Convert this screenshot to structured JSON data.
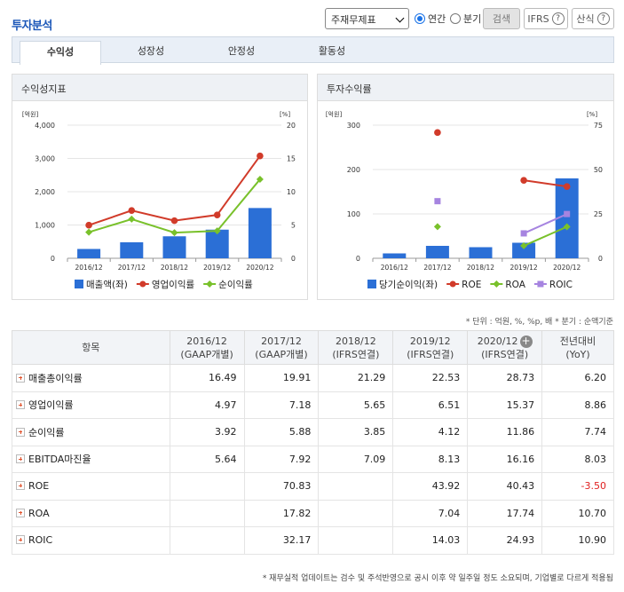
{
  "header": {
    "title": "투자분석",
    "select_value": "주재무제표",
    "radio_annual": "연간",
    "radio_quarter": "분기",
    "search": "검색",
    "ifrs": "IFRS",
    "calc": "산식",
    "q": "?"
  },
  "tabs": [
    "수익성",
    "성장성",
    "안정성",
    "활동성"
  ],
  "left_panel": {
    "title": "수익성지표",
    "unit_left": "[억원]",
    "unit_right": "[%]",
    "legend": [
      "매출액(좌)",
      "영업이익률",
      "순이익률"
    ]
  },
  "right_panel": {
    "title": "투자수익률",
    "unit_left": "[억원]",
    "unit_right": "[%]",
    "legend": [
      "당기순이익(좌)",
      "ROE",
      "ROA",
      "ROIC"
    ]
  },
  "colors": {
    "bar": "#2b6fd6",
    "red": "#d13b2a",
    "green": "#79c12b",
    "purple": "#a684e0"
  },
  "chart_data": [
    {
      "type": "bar",
      "title": "수익성지표",
      "categories": [
        "2016/12",
        "2017/12",
        "2018/12",
        "2019/12",
        "2020/12"
      ],
      "ylim": [
        0,
        4000
      ],
      "y2lim": [
        0,
        20
      ],
      "yticks": [
        "0",
        "1,000",
        "2,000",
        "3,000",
        "4,000"
      ],
      "y2ticks": [
        "0",
        "5",
        "10",
        "15",
        "20"
      ],
      "series": [
        {
          "name": "매출액(좌)",
          "axis": "left",
          "values": [
            280,
            480,
            660,
            860,
            1510
          ]
        },
        {
          "name": "영업이익률",
          "axis": "right",
          "values": [
            4.97,
            7.18,
            5.65,
            6.51,
            15.37
          ]
        },
        {
          "name": "순이익률",
          "axis": "right",
          "values": [
            3.92,
            5.88,
            3.85,
            4.12,
            11.86
          ]
        }
      ]
    },
    {
      "type": "bar",
      "title": "투자수익률",
      "categories": [
        "2016/12",
        "2017/12",
        "2018/12",
        "2019/12",
        "2020/12"
      ],
      "ylim": [
        0,
        300
      ],
      "y2lim": [
        0,
        75
      ],
      "yticks": [
        "0",
        "100",
        "200",
        "300"
      ],
      "y2ticks": [
        "0",
        "25",
        "50",
        "75"
      ],
      "series": [
        {
          "name": "당기순이익(좌)",
          "axis": "left",
          "values": [
            11,
            28,
            25,
            35,
            180
          ]
        },
        {
          "name": "ROE",
          "axis": "right",
          "values": [
            null,
            70.83,
            null,
            43.92,
            40.43
          ]
        },
        {
          "name": "ROA",
          "axis": "right",
          "values": [
            null,
            17.82,
            null,
            7.04,
            17.74
          ]
        },
        {
          "name": "ROIC",
          "axis": "right",
          "values": [
            null,
            32.17,
            null,
            14.03,
            24.93
          ]
        }
      ]
    }
  ],
  "note": "* 단위 : 억원, %, %p, 배   * 분기 : 순액기준",
  "table": {
    "headers": [
      [
        "항목"
      ],
      [
        "2016/12",
        "(GAAP개별)"
      ],
      [
        "2017/12",
        "(GAAP개별)"
      ],
      [
        "2018/12",
        "(IFRS연결)"
      ],
      [
        "2019/12",
        "(IFRS연결)"
      ],
      [
        "2020/12",
        "(IFRS연결)"
      ],
      [
        "전년대비",
        "(YoY)"
      ]
    ],
    "rows": [
      {
        "label": "매출총이익률",
        "values": [
          "16.49",
          "19.91",
          "21.29",
          "22.53",
          "28.73",
          "6.20"
        ]
      },
      {
        "label": "영업이익률",
        "values": [
          "4.97",
          "7.18",
          "5.65",
          "6.51",
          "15.37",
          "8.86"
        ]
      },
      {
        "label": "순이익률",
        "values": [
          "3.92",
          "5.88",
          "3.85",
          "4.12",
          "11.86",
          "7.74"
        ]
      },
      {
        "label": "EBITDA마진율",
        "values": [
          "5.64",
          "7.92",
          "7.09",
          "8.13",
          "16.16",
          "8.03"
        ]
      },
      {
        "label": "ROE",
        "values": [
          "",
          "70.83",
          "",
          "43.92",
          "40.43",
          "-3.50"
        ]
      },
      {
        "label": "ROA",
        "values": [
          "",
          "17.82",
          "",
          "7.04",
          "17.74",
          "10.70"
        ]
      },
      {
        "label": "ROIC",
        "values": [
          "",
          "32.17",
          "",
          "14.03",
          "24.93",
          "10.90"
        ]
      }
    ]
  },
  "footer": "* 재무실적 업데이트는 검수 및 주석반영으로 공시 이후 약 일주일 정도 소요되며, 기업별로 다르게 적용됨"
}
